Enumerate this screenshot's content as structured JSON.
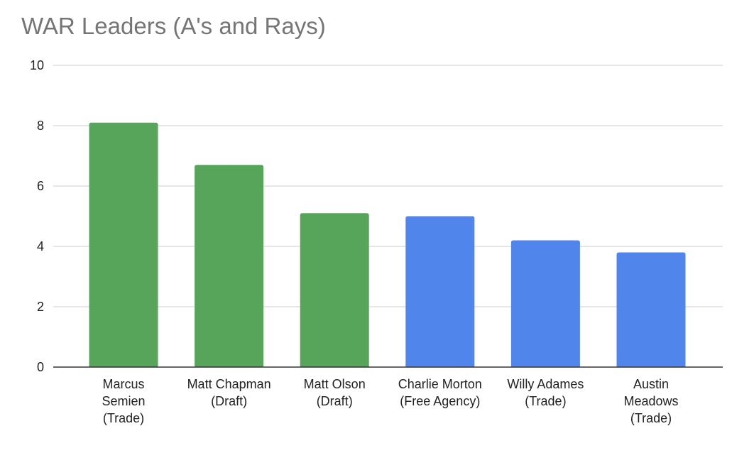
{
  "chart_data": {
    "type": "bar",
    "title": "WAR Leaders (A's and Rays)",
    "xlabel": "",
    "ylabel": "",
    "ylim": [
      0,
      10
    ],
    "yticks": [
      0,
      2,
      4,
      6,
      8,
      10
    ],
    "grid": true,
    "legend": "none",
    "categories": [
      [
        "Marcus",
        "Semien",
        "(Trade)"
      ],
      [
        "Matt Chapman",
        "(Draft)"
      ],
      [
        "Matt Olson",
        "(Draft)"
      ],
      [
        "Charlie Morton",
        "(Free Agency)"
      ],
      [
        "Willy Adames",
        "(Trade)"
      ],
      [
        "Austin",
        "Meadows",
        "(Trade)"
      ]
    ],
    "values": [
      8.1,
      6.7,
      5.1,
      5.0,
      4.2,
      3.8
    ],
    "bar_colors": [
      "#57a55a",
      "#57a55a",
      "#57a55a",
      "#5086ec",
      "#5086ec",
      "#5086ec"
    ]
  }
}
